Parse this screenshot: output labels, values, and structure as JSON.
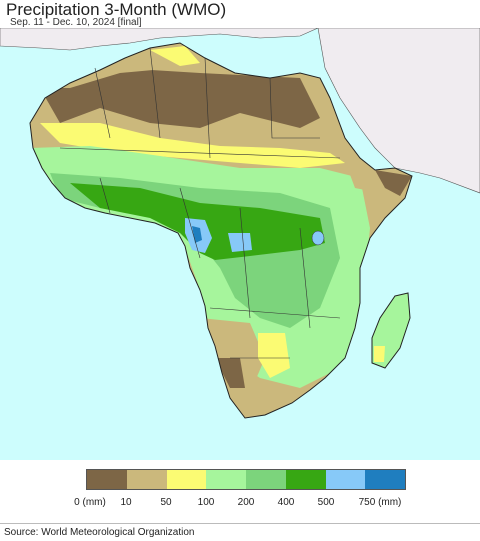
{
  "header": {
    "title": "Precipitation 3-Month (WMO)",
    "subtitle": "Sep. 11 - Dec. 10, 2024 [final]"
  },
  "legend": {
    "labels": [
      "0 (mm)",
      "10",
      "50",
      "100",
      "200",
      "400",
      "500",
      "750 (mm)"
    ],
    "colors": [
      "#7d6646",
      "#cbb87c",
      "#fbfb73",
      "#a6f59c",
      "#7cd47c",
      "#37a713",
      "#87c9f8",
      "#1f7ebf"
    ]
  },
  "map": {
    "ocean_color": "#cdfdfd",
    "no_data_land_color": "#f0ecf0"
  },
  "footer": {
    "source": "Source: World Meteorological Organization"
  }
}
